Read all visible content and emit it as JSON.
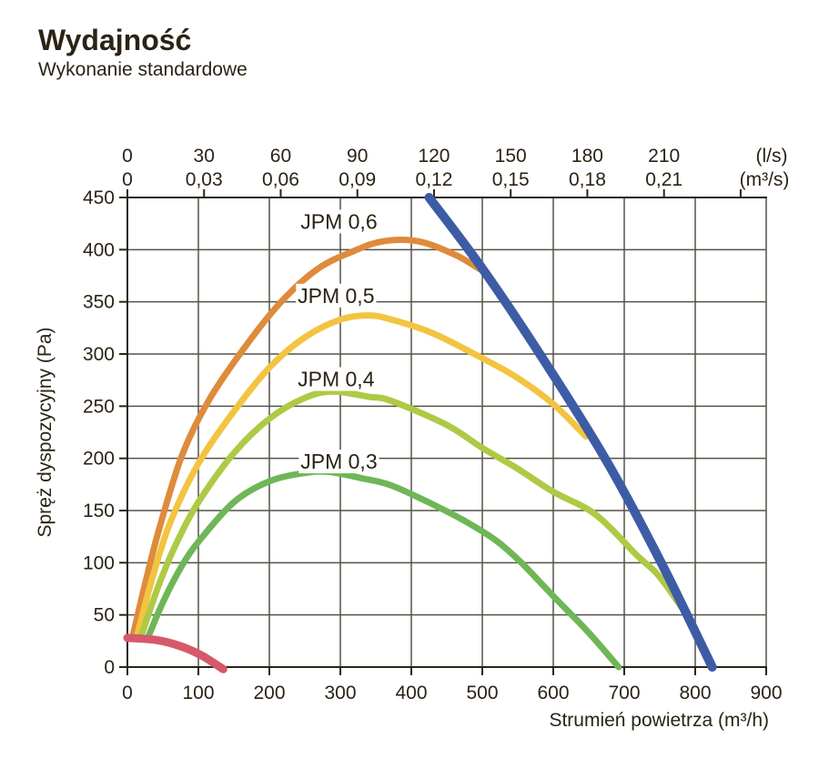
{
  "header": {
    "title": "Wydajność",
    "subtitle": "Wykonanie standardowe"
  },
  "chart_data": {
    "type": "line",
    "title": "Wydajność",
    "subtitle": "Wykonanie standardowe",
    "ylabel": "Spręż dyspozycyjny (Pa)",
    "xlabel": "Strumień powietrza (m³/h)",
    "top_axis_unit_primary": "(l/s)",
    "top_axis_unit_secondary": "(m³/s)",
    "xlim": [
      0,
      900
    ],
    "ylim": [
      0,
      450
    ],
    "grid": true,
    "x_ticks_bottom": [
      0,
      100,
      200,
      300,
      400,
      500,
      600,
      700,
      800,
      900
    ],
    "y_ticks": [
      0,
      50,
      100,
      150,
      200,
      250,
      300,
      350,
      400,
      450
    ],
    "top_axis": {
      "ls_tick_values": [
        0,
        30,
        60,
        90,
        120,
        150,
        180,
        210,
        240
      ],
      "ls_labels": [
        "0",
        "30",
        "60",
        "90",
        "120",
        "150",
        "180",
        "210"
      ],
      "m3s_labels": [
        "0",
        "0,03",
        "0,06",
        "0,09",
        "0,12",
        "0,15",
        "0,18",
        "0,21"
      ],
      "m3h_per_ls": 3.6
    },
    "colors": {
      "grid": "#575248",
      "axis": "#2b2315",
      "text": "#2b2315"
    },
    "series": [
      {
        "id": "jpm-0-6",
        "name": "JPM 0,6",
        "color": "#de8b3c",
        "width": 7,
        "label_x": 298,
        "label_y": 427,
        "points": [
          [
            8,
            31
          ],
          [
            25,
            80
          ],
          [
            45,
            133
          ],
          [
            77,
            203
          ],
          [
            115,
            256
          ],
          [
            167,
            308
          ],
          [
            218,
            351
          ],
          [
            269,
            382
          ],
          [
            320,
            399
          ],
          [
            360,
            408
          ],
          [
            410,
            408
          ],
          [
            462,
            395
          ],
          [
            497,
            381
          ]
        ]
      },
      {
        "id": "jpm-0-5",
        "name": "JPM 0,5",
        "color": "#f3c441",
        "width": 7,
        "label_x": 294,
        "label_y": 356,
        "points": [
          [
            14,
            31
          ],
          [
            35,
            85
          ],
          [
            60,
            138
          ],
          [
            100,
            195
          ],
          [
            150,
            245
          ],
          [
            200,
            287
          ],
          [
            250,
            316
          ],
          [
            300,
            333
          ],
          [
            340,
            337
          ],
          [
            372,
            333
          ],
          [
            430,
            320
          ],
          [
            500,
            296
          ],
          [
            550,
            277
          ],
          [
            600,
            252
          ],
          [
            646,
            221
          ]
        ]
      },
      {
        "id": "jpm-0-4",
        "name": "JPM 0,4",
        "color": "#aeca45",
        "width": 7,
        "label_x": 294,
        "label_y": 276,
        "points": [
          [
            20,
            31
          ],
          [
            45,
            80
          ],
          [
            70,
            120
          ],
          [
            100,
            158
          ],
          [
            150,
            205
          ],
          [
            200,
            238
          ],
          [
            250,
            258
          ],
          [
            290,
            264
          ],
          [
            340,
            259
          ],
          [
            372,
            255
          ],
          [
            450,
            232
          ],
          [
            500,
            210
          ],
          [
            550,
            190
          ],
          [
            600,
            168
          ],
          [
            660,
            146
          ],
          [
            718,
            107
          ],
          [
            748,
            88
          ],
          [
            780,
            58
          ]
        ]
      },
      {
        "id": "jpm-0-3",
        "name": "JPM 0,3",
        "color": "#6fb657",
        "width": 7,
        "label_x": 298,
        "label_y": 197,
        "points": [
          [
            30,
            30
          ],
          [
            50,
            62
          ],
          [
            75,
            95
          ],
          [
            100,
            120
          ],
          [
            150,
            158
          ],
          [
            200,
            178
          ],
          [
            250,
            186
          ],
          [
            285,
            187
          ],
          [
            330,
            181
          ],
          [
            372,
            174
          ],
          [
            430,
            156
          ],
          [
            478,
            139
          ],
          [
            520,
            121
          ],
          [
            555,
            100
          ],
          [
            600,
            68
          ],
          [
            650,
            33
          ],
          [
            692,
            0
          ]
        ]
      },
      {
        "id": "limit-line",
        "name": "",
        "color": "#3d5ca6",
        "width": 10,
        "points": [
          [
            425,
            450
          ],
          [
            500,
            382
          ],
          [
            581,
            300
          ],
          [
            673,
            200
          ],
          [
            752,
            100
          ],
          [
            824,
            0
          ]
        ]
      },
      {
        "id": "min-curve",
        "name": "",
        "color": "#d4596a",
        "width": 9,
        "points": [
          [
            0,
            28
          ],
          [
            40,
            26
          ],
          [
            75,
            20
          ],
          [
            105,
            11
          ],
          [
            135,
            -2
          ]
        ]
      }
    ]
  }
}
